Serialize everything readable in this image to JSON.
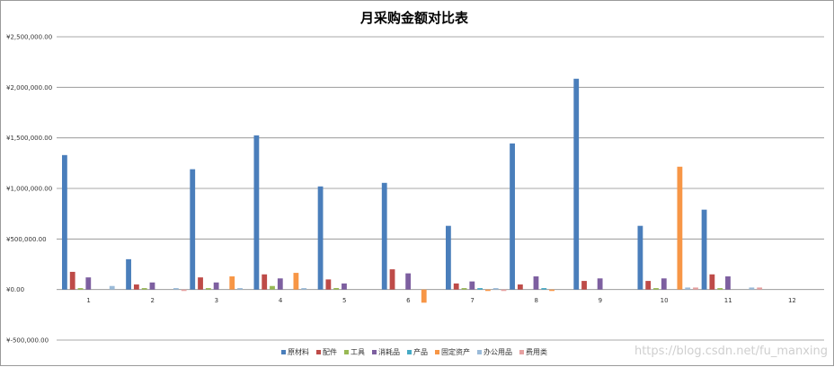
{
  "chart_data": {
    "type": "bar",
    "title": "月采购金额对比表",
    "categories": [
      "1",
      "2",
      "3",
      "4",
      "5",
      "6",
      "7",
      "8",
      "9",
      "10",
      "11",
      "12"
    ],
    "ylim": [
      -500000,
      2500000
    ],
    "yticks": [
      -500000,
      0,
      500000,
      1000000,
      1500000,
      2000000,
      2500000
    ],
    "ytick_labels": [
      "¥-500,000.00",
      "¥0.00",
      "¥500,000.00",
      "¥1,000,000.00",
      "¥1,500,000.00",
      "¥2,000,000.00",
      "¥2,500,000.00"
    ],
    "grid": true,
    "legend_position": "bottom",
    "series": [
      {
        "name": "原材料",
        "color": "#4a7ebb",
        "values": [
          1330000,
          300000,
          1190000,
          1525000,
          1020000,
          1055000,
          630000,
          1445000,
          2085000,
          630000,
          790000,
          0
        ]
      },
      {
        "name": "配件",
        "color": "#be4b48",
        "values": [
          175000,
          50000,
          120000,
          150000,
          100000,
          200000,
          60000,
          50000,
          85000,
          85000,
          150000,
          0
        ]
      },
      {
        "name": "工具",
        "color": "#98b954",
        "values": [
          5000,
          10000,
          5000,
          35000,
          15000,
          0,
          5000,
          0,
          0,
          5000,
          5000,
          0
        ]
      },
      {
        "name": "消耗品",
        "color": "#7d5fa0",
        "values": [
          120000,
          70000,
          70000,
          110000,
          60000,
          160000,
          80000,
          130000,
          110000,
          110000,
          130000,
          0
        ]
      },
      {
        "name": "产品",
        "color": "#46aac5",
        "values": [
          0,
          0,
          0,
          0,
          0,
          0,
          10000,
          10000,
          0,
          0,
          0,
          0
        ]
      },
      {
        "name": "固定资产",
        "color": "#f79646",
        "values": [
          0,
          0,
          130000,
          165000,
          0,
          -130000,
          -10000,
          -10000,
          0,
          1215000,
          0,
          0
        ]
      },
      {
        "name": "办公用品",
        "color": "#9bbbd9",
        "values": [
          35000,
          10000,
          10000,
          5000,
          0,
          0,
          10000,
          0,
          0,
          20000,
          20000,
          0
        ]
      },
      {
        "name": "费用类",
        "color": "#e6a0a0",
        "values": [
          0,
          -10000,
          0,
          0,
          0,
          0,
          -5000,
          0,
          0,
          20000,
          20000,
          0
        ]
      }
    ]
  },
  "watermark": "https://blog.csdn.net/fu_manxing"
}
